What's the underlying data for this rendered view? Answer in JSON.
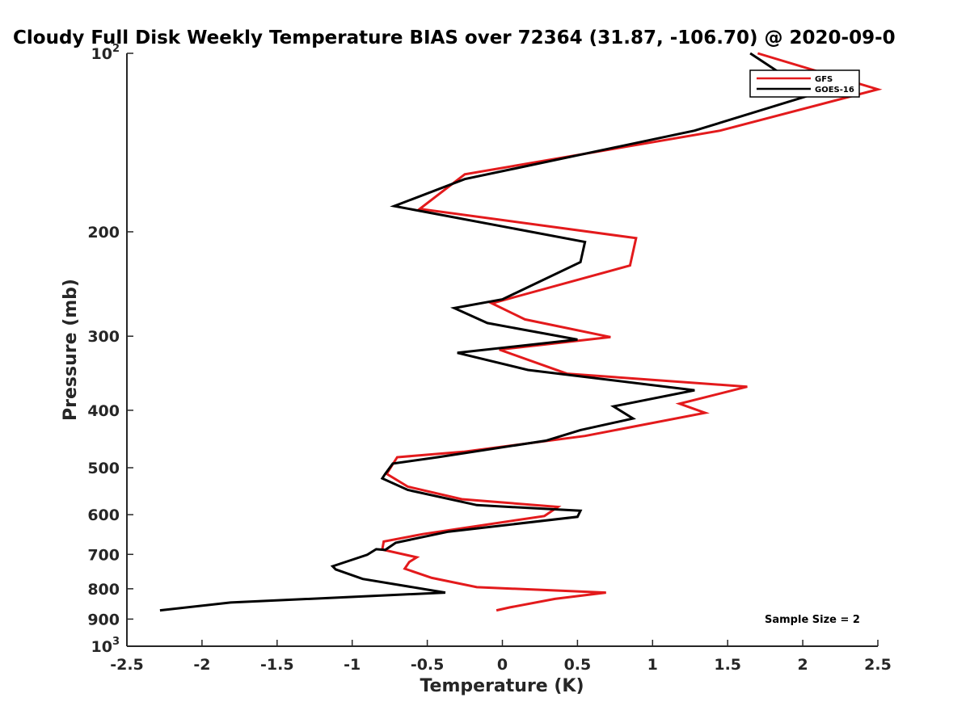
{
  "chart_data": {
    "type": "line",
    "title": "Cloudy Full Disk Weekly Temperature BIAS over 72364 (31.87, -106.70) @ 2020-09-0",
    "xlabel": "Temperature (K)",
    "ylabel": "Pressure (mb)",
    "xlim": [
      -2.5,
      2.5
    ],
    "ylim": [
      100,
      1000
    ],
    "y_scale": "log",
    "y_reversed": true,
    "grid": false,
    "legend_position": "top-right",
    "x_ticks": [
      "-2.5",
      "-2",
      "-1.5",
      "-1",
      "-0.5",
      "0",
      "0.5",
      "1",
      "1.5",
      "2",
      "2.5"
    ],
    "y_ticks": [
      {
        "value": 100,
        "base": "10",
        "exp": "2"
      },
      {
        "value": 200,
        "label": "200"
      },
      {
        "value": 300,
        "label": "300"
      },
      {
        "value": 400,
        "label": "400"
      },
      {
        "value": 500,
        "label": "500"
      },
      {
        "value": 600,
        "label": "600"
      },
      {
        "value": 700,
        "label": "700"
      },
      {
        "value": 800,
        "label": "800"
      },
      {
        "value": 900,
        "label": "900"
      },
      {
        "value": 1000,
        "base": "10",
        "exp": "3"
      }
    ],
    "annotation": "Sample Size = 2",
    "series": [
      {
        "name": "GFS",
        "color": "#e31a1c",
        "points": [
          [
            1.7,
            100
          ],
          [
            2.5,
            115
          ],
          [
            1.45,
            135
          ],
          [
            -0.25,
            160
          ],
          [
            -0.55,
            183
          ],
          [
            0.89,
            205
          ],
          [
            0.85,
            228
          ],
          [
            -0.07,
            264
          ],
          [
            0.15,
            281
          ],
          [
            0.72,
            301
          ],
          [
            -0.02,
            316
          ],
          [
            0.43,
            347
          ],
          [
            1.63,
            365
          ],
          [
            1.18,
            390
          ],
          [
            1.35,
            404
          ],
          [
            0.55,
            442
          ],
          [
            -0.26,
            470
          ],
          [
            -0.7,
            480
          ],
          [
            -0.77,
            512
          ],
          [
            -0.63,
            538
          ],
          [
            -0.27,
            565
          ],
          [
            0.37,
            582
          ],
          [
            0.28,
            603
          ],
          [
            -0.53,
            647
          ],
          [
            -0.79,
            666
          ],
          [
            -0.8,
            687
          ],
          [
            -0.57,
            708
          ],
          [
            -0.62,
            721
          ],
          [
            -0.65,
            740
          ],
          [
            -0.47,
            767
          ],
          [
            -0.17,
            795
          ],
          [
            0.69,
            812
          ],
          [
            0.35,
            832
          ],
          [
            0.05,
            860
          ],
          [
            -0.04,
            870
          ]
        ]
      },
      {
        "name": "GOES-16",
        "color": "#000000",
        "points": [
          [
            1.65,
            100
          ],
          [
            1.85,
            108
          ],
          [
            2.08,
            117
          ],
          [
            1.28,
            135
          ],
          [
            -0.25,
            163
          ],
          [
            -0.72,
            181
          ],
          [
            0.55,
            208
          ],
          [
            0.52,
            225
          ],
          [
            0.0,
            260
          ],
          [
            -0.32,
            269
          ],
          [
            -0.1,
            285
          ],
          [
            0.5,
            304
          ],
          [
            -0.3,
            320
          ],
          [
            0.17,
            342
          ],
          [
            1.28,
            370
          ],
          [
            0.74,
            394
          ],
          [
            0.87,
            413
          ],
          [
            0.52,
            432
          ],
          [
            0.29,
            450
          ],
          [
            -0.43,
            480
          ],
          [
            -0.73,
            492
          ],
          [
            -0.78,
            512
          ],
          [
            -0.8,
            521
          ],
          [
            -0.63,
            545
          ],
          [
            -0.17,
            578
          ],
          [
            0.52,
            591
          ],
          [
            0.5,
            605
          ],
          [
            -0.36,
            641
          ],
          [
            -0.71,
            669
          ],
          [
            -0.78,
            688
          ],
          [
            -0.84,
            686
          ],
          [
            -0.9,
            701
          ],
          [
            -1.13,
            733
          ],
          [
            -1.11,
            742
          ],
          [
            -0.93,
            770
          ],
          [
            -0.38,
            812
          ],
          [
            -1.81,
            844
          ],
          [
            -2.28,
            870
          ]
        ]
      }
    ]
  }
}
